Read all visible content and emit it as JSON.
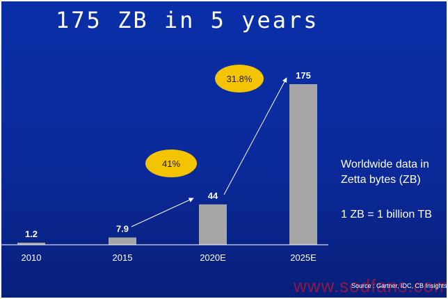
{
  "title": "175 ZB in 5 years",
  "chart_data": {
    "type": "bar",
    "categories": [
      "2010",
      "2015",
      "2020E",
      "2025E"
    ],
    "values": [
      1.2,
      7.9,
      44,
      175
    ],
    "value_labels": [
      "1.2",
      "7.9",
      "44",
      "175"
    ],
    "ylim": [
      0,
      175
    ],
    "grid": false,
    "colors": {
      "bar": "#a6a6a6",
      "bubble": "#f5c400",
      "arrow": "#ffffff",
      "axis": "#ffffff"
    },
    "annotations": [
      {
        "text": "41%",
        "from": "2015",
        "to": "2020E"
      },
      {
        "text": "31.8%",
        "from": "2020E",
        "to": "2025E"
      }
    ]
  },
  "note": "Worldwide data in Zetta bytes (ZB)",
  "equivalence": "1 ZB = 1 billion TB",
  "source": "Source : Gartner, IDC, CB Insights",
  "watermark": "www.sodfans.com"
}
